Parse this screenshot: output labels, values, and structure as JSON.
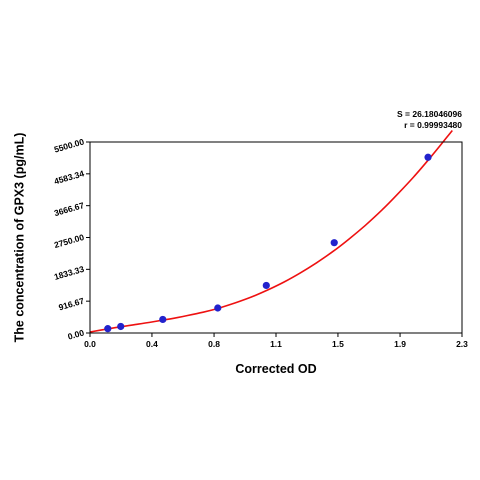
{
  "chart_data": {
    "type": "scatter",
    "title": "",
    "xlabel": "Corrected OD",
    "ylabel": "The concentration of GPX3 (pg/mL)",
    "xlim": [
      0.0,
      2.3
    ],
    "ylim": [
      0.0,
      5500.0
    ],
    "x_ticks": [
      "0.0",
      "0.4",
      "0.8",
      "1.1",
      "1.5",
      "1.9",
      "2.3"
    ],
    "x_tick_values": [
      0.0,
      0.383,
      0.767,
      1.15,
      1.533,
      1.917,
      2.3
    ],
    "y_ticks": [
      "0.00",
      "916.67",
      "1833.33",
      "2750.00",
      "3666.67",
      "4583.34",
      "5500.00"
    ],
    "y_tick_values": [
      0.0,
      916.67,
      1833.33,
      2750.0,
      3666.67,
      4583.34,
      5500.0
    ],
    "grid": false,
    "annotations": [
      "S = 26.18046096",
      "r = 0.99993480"
    ],
    "points": {
      "x": [
        0.11,
        0.19,
        0.45,
        0.79,
        1.09,
        1.51,
        2.09
      ],
      "y": [
        125,
        188,
        390,
        720,
        1370,
        2600,
        5060
      ],
      "color": "#2222cc"
    },
    "curve": {
      "x": [
        0.0,
        0.1,
        0.2,
        0.3,
        0.4,
        0.5,
        0.6,
        0.7,
        0.8,
        0.9,
        1.0,
        1.1,
        1.2,
        1.3,
        1.4,
        1.5,
        1.6,
        1.7,
        1.8,
        1.9,
        2.0,
        2.1,
        2.2,
        2.24
      ],
      "y": [
        30,
        110,
        185,
        255,
        330,
        410,
        500,
        600,
        720,
        870,
        1040,
        1240,
        1470,
        1730,
        2020,
        2340,
        2700,
        3090,
        3520,
        3990,
        4490,
        5030,
        5600,
        5830
      ],
      "color": "#ee1111"
    }
  }
}
